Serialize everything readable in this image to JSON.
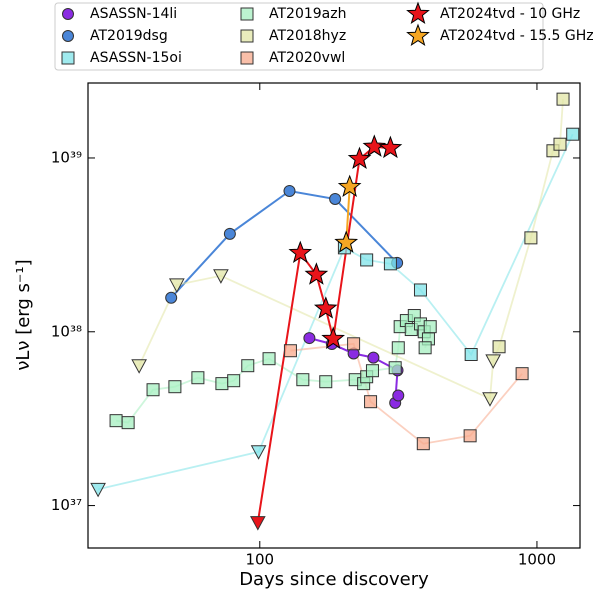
{
  "chart_data": {
    "type": "scatter",
    "xlabel": "Days since discovery",
    "ylabel": "νLν [erg s⁻¹]",
    "xscale": "log",
    "yscale": "log",
    "xlim": [
      24,
      1430
    ],
    "ylim": [
      5.7e+36,
      2.7e+39
    ],
    "xticks": [
      100,
      1000
    ],
    "yticks": [
      {
        "value": 1e+37,
        "label": "10³⁷"
      },
      {
        "value": 1e+38,
        "label": "10³⁸"
      },
      {
        "value": 1e+39,
        "label": "10³⁹"
      }
    ],
    "legend": "top",
    "series": [
      {
        "name": "ASASSN-14li",
        "color": "#8a2be2",
        "marker": "o",
        "alpha": 1,
        "x": [
          151,
          182,
          218,
          257,
          314,
          308,
          316
        ],
        "values": [
          9.2e+37,
          8.5e+37,
          7.5e+37,
          7.1e+37,
          6e+37,
          3.9e+37,
          4.3e+37
        ]
      },
      {
        "name": "AT2019dsg",
        "color": "#4a86d8",
        "marker": "o",
        "alpha": 1,
        "x": [
          47.9,
          78,
          128,
          187,
          313
        ],
        "values": [
          1.57e+38,
          3.66e+38,
          6.46e+38,
          5.81e+38,
          2.49e+38
        ]
      },
      {
        "name": "ASASSN-15oi",
        "color": "#7fe3e8",
        "marker": "s",
        "alpha": 0.6,
        "markers": [
          "v",
          "v",
          "s",
          "s",
          "s",
          "s",
          "s",
          "s"
        ],
        "x": [
          26.1,
          99,
          202,
          243,
          296,
          380,
          579,
          1346
        ],
        "values": [
          1.24e+37,
          2.04e+37,
          3.04e+38,
          2.59e+38,
          2.46e+38,
          1.74e+38,
          7.4e+37,
          1.37e+39
        ]
      },
      {
        "name": "AT2019azh",
        "color": "#a6efc0",
        "marker": "s",
        "alpha": 0.6,
        "x": [
          30.3,
          33.5,
          41.2,
          49.4,
          59.8,
          73.0,
          80.5,
          90.5,
          108,
          143,
          173,
          221,
          237,
          243,
          255,
          308,
          316,
          321,
          338,
          352,
          361,
          380,
          392,
          406,
          395,
          412
        ],
        "values": [
          3.08e+37,
          3e+37,
          4.64e+37,
          4.83e+37,
          5.44e+37,
          5.03e+37,
          5.23e+37,
          6.38e+37,
          7e+37,
          5.3e+37,
          5.16e+37,
          5.3e+37,
          5.03e+37,
          5.51e+37,
          5.97e+37,
          6.21e+37,
          8.09e+37,
          1.07e+38,
          1.16e+38,
          1.03e+38,
          1.24e+38,
          1.11e+38,
          1e+38,
          9.1e+37,
          8.09e+37,
          1.07e+38
        ]
      },
      {
        "name": "AT2018hyz",
        "color": "#e2e5a6",
        "marker": "s",
        "alpha": 0.6,
        "markers": [
          "v",
          "v",
          "v",
          "v",
          "v",
          "s",
          "s",
          "s",
          "s",
          "s"
        ],
        "x": [
          36.7,
          50.2,
          72.4,
          677,
          695,
          730,
          951,
          1142,
          1211,
          1242
        ],
        "values": [
          6.38e+37,
          1.86e+38,
          2.1e+38,
          4.12e+37,
          6.8e+37,
          8.2e+37,
          3.47e+38,
          1.1e+39,
          1.2e+39,
          2.18e+39
        ]
      },
      {
        "name": "AT2020vwl",
        "color": "#f7a98c",
        "marker": "s",
        "alpha": 0.6,
        "x": [
          129,
          218,
          251,
          389,
          574,
          884
        ],
        "values": [
          7.78e+37,
          8.53e+37,
          3.96e+37,
          2.27e+37,
          2.52e+37,
          5.74e+37
        ]
      },
      {
        "name": "AT2024tvd - 10 GHz",
        "color": "#e8141a",
        "marker": "*",
        "alpha": 1,
        "markers": [
          "v",
          "*",
          "*",
          "*",
          "*",
          "*",
          "*",
          "*"
        ],
        "x": [
          98.4,
          140,
          160,
          173,
          184,
          229,
          259,
          296
        ],
        "values": [
          7.98e+36,
          2.84e+38,
          2.13e+38,
          1.36e+38,
          9.1e+37,
          9.87e+38,
          1.16e+39,
          1.14e+39
        ]
      },
      {
        "name": "AT2024tvd - 15.5 GHz",
        "color": "#f5a623",
        "marker": "*",
        "alpha": 1,
        "x": [
          205,
          211
        ],
        "values": [
          3.25e+38,
          6.81e+38
        ]
      }
    ]
  }
}
